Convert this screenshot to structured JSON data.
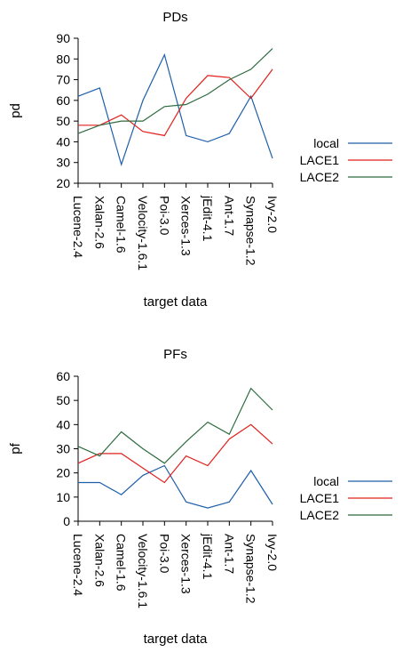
{
  "chart_data": [
    {
      "type": "line",
      "title": "PDs",
      "xlabel": "target data",
      "ylabel": "pd",
      "categories": [
        "Lucene-2.4",
        "Xalan-2.6",
        "Camel-1.6",
        "Velocity-1.6.1",
        "Poi-3.0",
        "Xerces-1.3",
        "jEdit-4.1",
        "Ant-1.7",
        "Synapse-1.2",
        "Ivy-2.0"
      ],
      "ylim": [
        20,
        90
      ],
      "yticks": [
        20,
        30,
        40,
        50,
        60,
        70,
        80,
        90
      ],
      "grid": false,
      "legend_position": "right",
      "series": [
        {
          "name": "local",
          "color": "#1f5fa8",
          "values": [
            62,
            66,
            29,
            60,
            82,
            43,
            40,
            44,
            62,
            32
          ]
        },
        {
          "name": "LACE1",
          "color": "#e0201b",
          "values": [
            48,
            48,
            53,
            45,
            43,
            61,
            72,
            71,
            61,
            75
          ]
        },
        {
          "name": "LACE2",
          "color": "#2e6b3e",
          "values": [
            44,
            48,
            50,
            50,
            57,
            58,
            63,
            70,
            75,
            85
          ]
        }
      ]
    },
    {
      "type": "line",
      "title": "PFs",
      "xlabel": "target data",
      "ylabel": "pf",
      "categories": [
        "Lucene-2.4",
        "Xalan-2.6",
        "Camel-1.6",
        "Velocity-1.6.1",
        "Poi-3.0",
        "Xerces-1.3",
        "jEdit-4.1",
        "Ant-1.7",
        "Synapse-1.2",
        "Ivy-2.0"
      ],
      "ylim": [
        0,
        60
      ],
      "yticks": [
        0,
        10,
        20,
        30,
        40,
        50,
        60
      ],
      "grid": false,
      "legend_position": "right",
      "series": [
        {
          "name": "local",
          "color": "#1f5fa8",
          "values": [
            16,
            16,
            11,
            19,
            23,
            8,
            5.5,
            8,
            21,
            7
          ]
        },
        {
          "name": "LACE1",
          "color": "#e0201b",
          "values": [
            24,
            28,
            28,
            22,
            16,
            27,
            23,
            34,
            40,
            32
          ]
        },
        {
          "name": "LACE2",
          "color": "#2e6b3e",
          "values": [
            31,
            27,
            37,
            30,
            24,
            33,
            41,
            36,
            55,
            46
          ]
        }
      ]
    }
  ]
}
